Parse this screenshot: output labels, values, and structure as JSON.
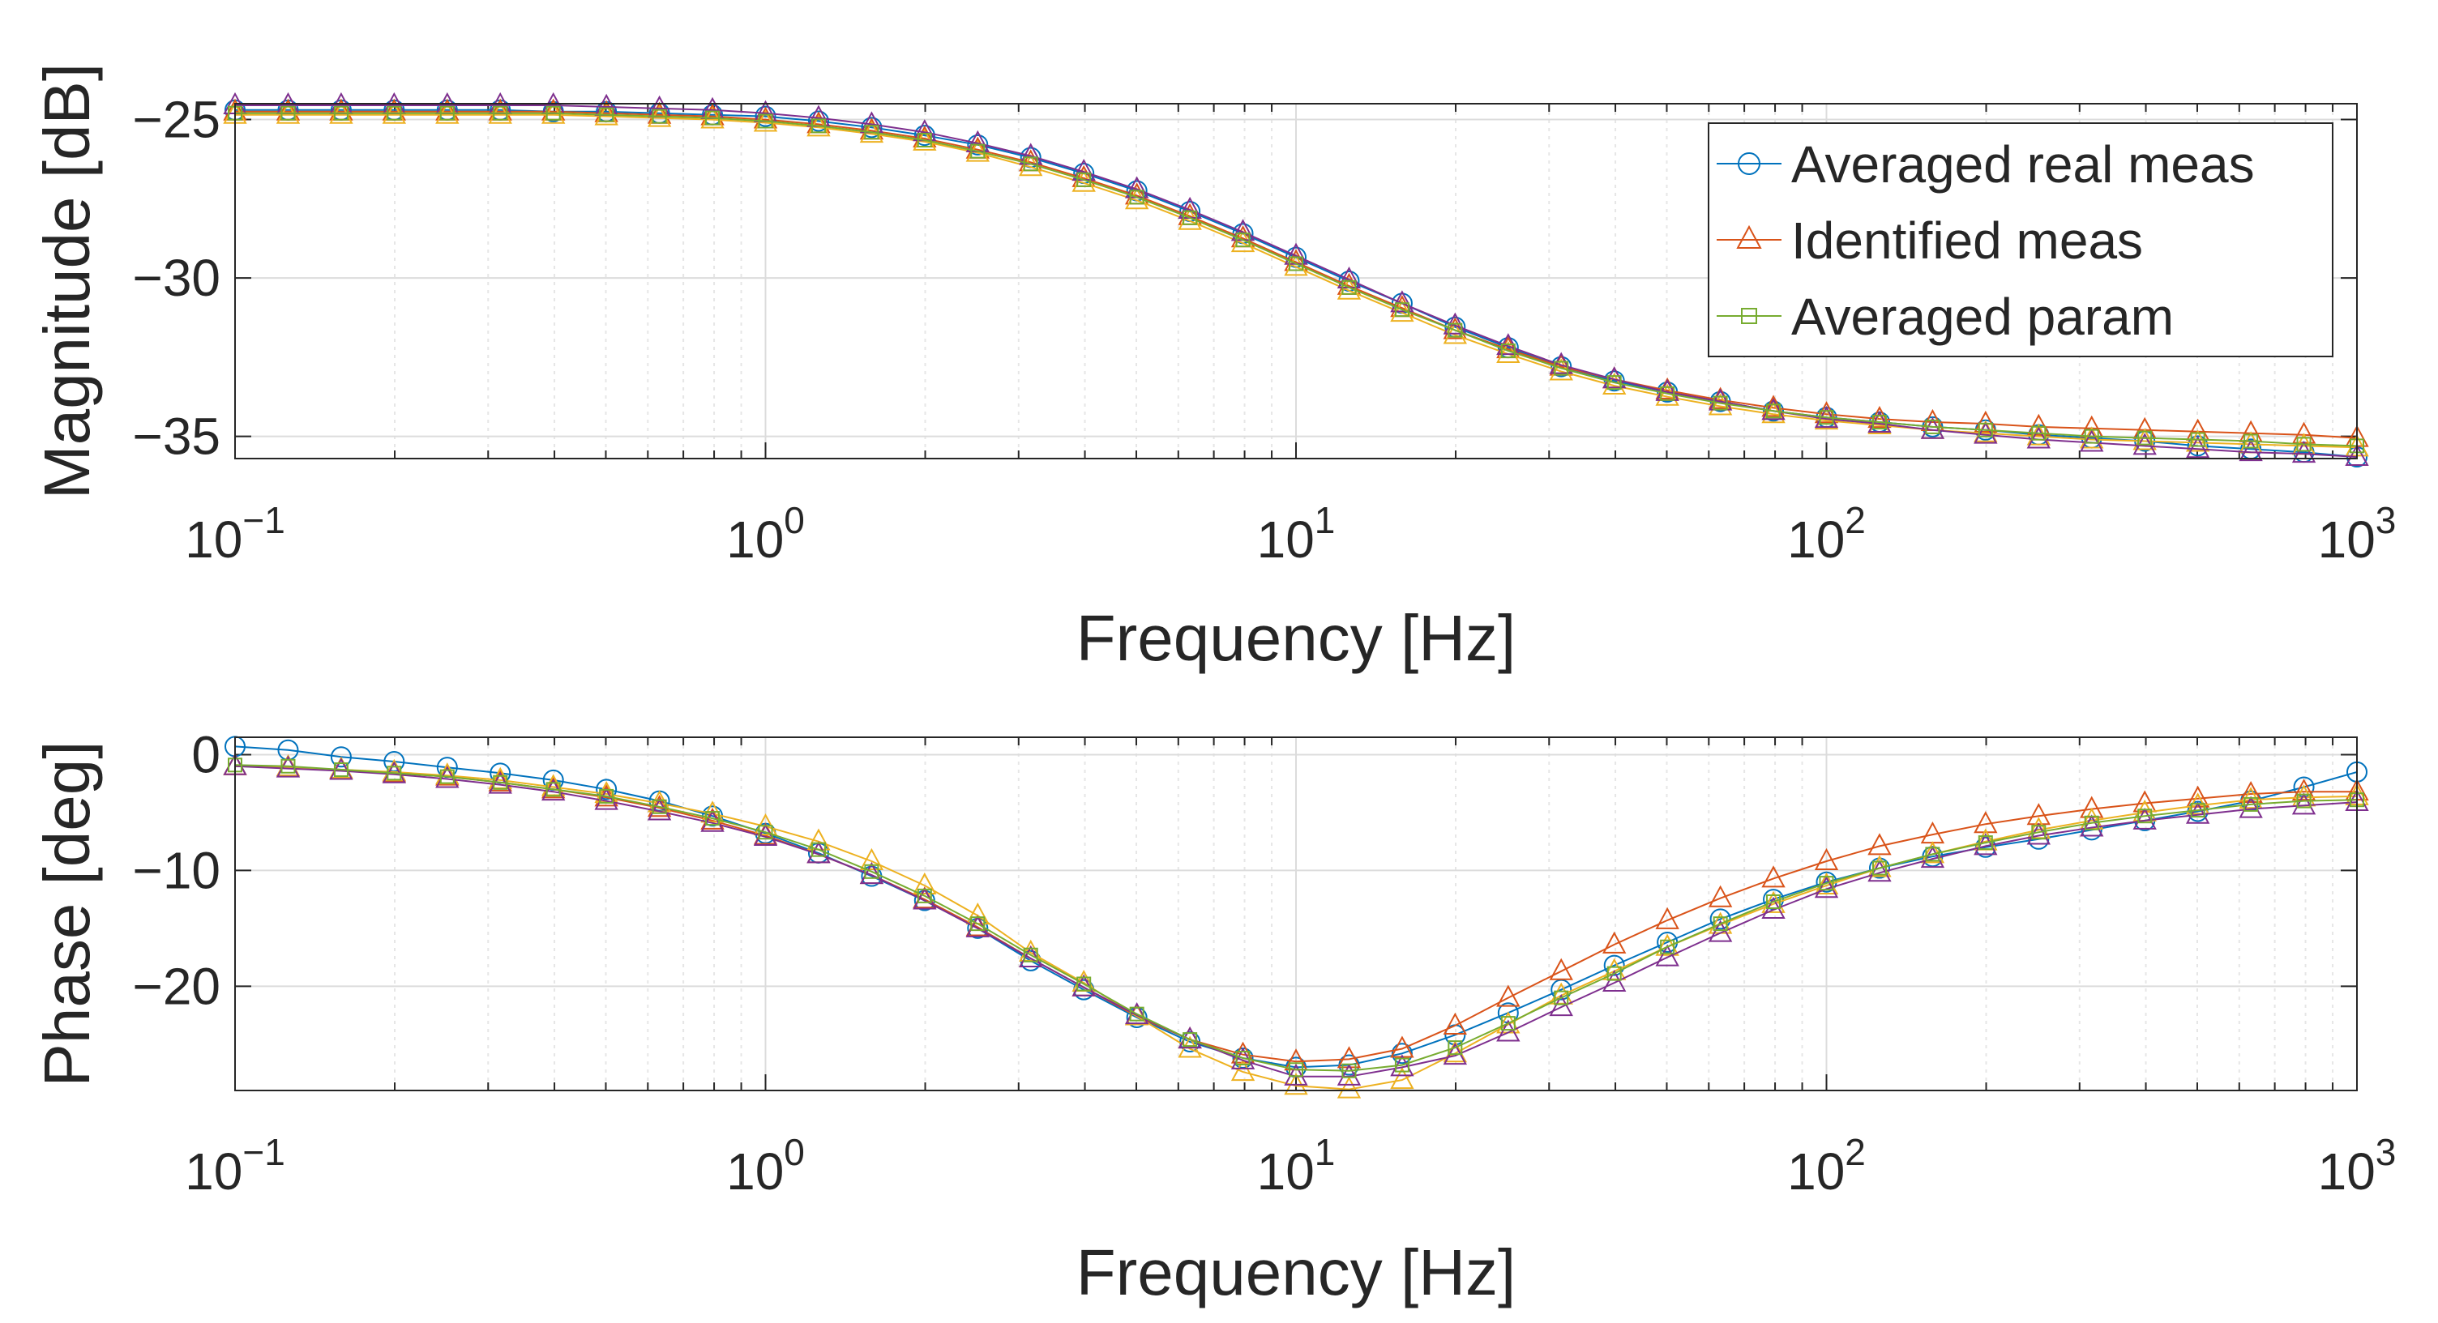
{
  "colors": {
    "blue": "#0072BD",
    "orange": "#D95319",
    "yellow": "#EDB120",
    "purple": "#7E2F8E",
    "green": "#77AC30",
    "axis": "#262626"
  },
  "chart_data": [
    {
      "type": "line",
      "xscale": "log",
      "xlim": [
        0.1,
        1000
      ],
      "ylim": [
        -35.7,
        -24.5
      ],
      "xlabel": "Frequency [Hz]",
      "ylabel": "Magnitude [dB]",
      "x_ticks": [
        0.1,
        1,
        10,
        100,
        1000
      ],
      "x_tick_labels": [
        {
          "base": "10",
          "exp": "−1"
        },
        {
          "base": "10",
          "exp": "0"
        },
        {
          "base": "10",
          "exp": "1"
        },
        {
          "base": "10",
          "exp": "2"
        },
        {
          "base": "10",
          "exp": "3"
        }
      ],
      "y_ticks": [
        -35,
        -30,
        -25
      ],
      "y_tick_labels": [
        "−35",
        "−30",
        "−25"
      ],
      "grid": true,
      "legend": {
        "position": "top-right",
        "entries": [
          {
            "label": "Averaged real meas",
            "series": 0
          },
          {
            "label": "Identified meas",
            "series": 1
          },
          {
            "label": "Averaged param",
            "series": 4
          }
        ]
      },
      "x": [
        0.1,
        0.1259,
        0.1585,
        0.1995,
        0.2512,
        0.3162,
        0.3981,
        0.5012,
        0.631,
        0.7943,
        1.0,
        1.259,
        1.585,
        1.995,
        2.512,
        3.162,
        3.981,
        5.012,
        6.31,
        7.943,
        10.0,
        12.59,
        15.85,
        19.95,
        25.12,
        31.62,
        39.81,
        50.12,
        63.1,
        79.43,
        100.0,
        125.9,
        158.5,
        199.5,
        251.2,
        316.2,
        398.1,
        501.2,
        631.0,
        794.3,
        1000.0
      ],
      "series": [
        {
          "name": "Averaged real meas",
          "color": "blue",
          "marker": "circle",
          "values": [
            -24.7,
            -24.7,
            -24.7,
            -24.7,
            -24.7,
            -24.7,
            -24.75,
            -24.75,
            -24.8,
            -24.85,
            -24.9,
            -25.05,
            -25.25,
            -25.5,
            -25.8,
            -26.2,
            -26.7,
            -27.25,
            -27.9,
            -28.6,
            -29.35,
            -30.1,
            -30.8,
            -31.55,
            -32.2,
            -32.8,
            -33.25,
            -33.6,
            -33.9,
            -34.2,
            -34.4,
            -34.55,
            -34.7,
            -34.8,
            -34.95,
            -35.05,
            -35.15,
            -35.3,
            -35.4,
            -35.5,
            -35.65
          ]
        },
        {
          "name": "Identified meas",
          "color": "orange",
          "marker": "triangle",
          "values": [
            -24.75,
            -24.75,
            -24.75,
            -24.75,
            -24.75,
            -24.75,
            -24.75,
            -24.8,
            -24.85,
            -24.9,
            -25.0,
            -25.15,
            -25.35,
            -25.6,
            -25.95,
            -26.35,
            -26.85,
            -27.4,
            -28.05,
            -28.75,
            -29.5,
            -30.25,
            -30.95,
            -31.65,
            -32.25,
            -32.8,
            -33.2,
            -33.55,
            -33.85,
            -34.1,
            -34.3,
            -34.45,
            -34.55,
            -34.6,
            -34.7,
            -34.75,
            -34.8,
            -34.85,
            -34.9,
            -34.95,
            -35.05
          ]
        },
        {
          "name": "",
          "color": "yellow",
          "marker": "triangle",
          "values": [
            -24.85,
            -24.85,
            -24.85,
            -24.85,
            -24.85,
            -24.85,
            -24.85,
            -24.9,
            -24.95,
            -25.0,
            -25.1,
            -25.25,
            -25.45,
            -25.7,
            -26.05,
            -26.5,
            -27.0,
            -27.55,
            -28.2,
            -28.9,
            -29.65,
            -30.4,
            -31.1,
            -31.8,
            -32.4,
            -32.95,
            -33.4,
            -33.75,
            -34.05,
            -34.3,
            -34.5,
            -34.65,
            -34.8,
            -34.9,
            -35.0,
            -35.1,
            -35.15,
            -35.2,
            -35.25,
            -35.3,
            -35.35
          ]
        },
        {
          "name": "",
          "color": "purple",
          "marker": "triangle",
          "values": [
            -24.55,
            -24.55,
            -24.55,
            -24.55,
            -24.55,
            -24.55,
            -24.55,
            -24.6,
            -24.65,
            -24.7,
            -24.8,
            -24.95,
            -25.15,
            -25.4,
            -25.75,
            -26.15,
            -26.65,
            -27.2,
            -27.85,
            -28.55,
            -29.3,
            -30.05,
            -30.8,
            -31.5,
            -32.15,
            -32.75,
            -33.2,
            -33.6,
            -33.9,
            -34.2,
            -34.45,
            -34.6,
            -34.8,
            -34.95,
            -35.1,
            -35.2,
            -35.3,
            -35.4,
            -35.5,
            -35.55,
            -35.65
          ]
        },
        {
          "name": "Averaged param",
          "color": "green",
          "marker": "square",
          "values": [
            -24.8,
            -24.8,
            -24.8,
            -24.8,
            -24.8,
            -24.8,
            -24.8,
            -24.85,
            -24.9,
            -24.95,
            -25.05,
            -25.2,
            -25.4,
            -25.65,
            -26.0,
            -26.4,
            -26.9,
            -27.45,
            -28.1,
            -28.8,
            -29.55,
            -30.3,
            -31.0,
            -31.65,
            -32.3,
            -32.85,
            -33.3,
            -33.65,
            -33.95,
            -34.2,
            -34.4,
            -34.55,
            -34.7,
            -34.8,
            -34.9,
            -35.0,
            -35.05,
            -35.1,
            -35.15,
            -35.25,
            -35.3
          ]
        }
      ]
    },
    {
      "type": "line",
      "xscale": "log",
      "xlim": [
        0.1,
        1000
      ],
      "ylim": [
        -29,
        1.5
      ],
      "xlabel": "Frequency [Hz]",
      "ylabel": "Phase [deg]",
      "x_ticks": [
        0.1,
        1,
        10,
        100,
        1000
      ],
      "x_tick_labels": [
        {
          "base": "10",
          "exp": "−1"
        },
        {
          "base": "10",
          "exp": "0"
        },
        {
          "base": "10",
          "exp": "1"
        },
        {
          "base": "10",
          "exp": "2"
        },
        {
          "base": "10",
          "exp": "3"
        }
      ],
      "y_ticks": [
        -20,
        -10,
        0
      ],
      "y_tick_labels": [
        "−20",
        "−10",
        "0"
      ],
      "grid": true,
      "x": [
        0.1,
        0.1259,
        0.1585,
        0.1995,
        0.2512,
        0.3162,
        0.3981,
        0.5012,
        0.631,
        0.7943,
        1.0,
        1.259,
        1.585,
        1.995,
        2.512,
        3.162,
        3.981,
        5.012,
        6.31,
        7.943,
        10.0,
        12.59,
        15.85,
        19.95,
        25.12,
        31.62,
        39.81,
        50.12,
        63.1,
        79.43,
        100.0,
        125.9,
        158.5,
        199.5,
        251.2,
        316.2,
        398.1,
        501.2,
        631.0,
        794.3,
        1000.0
      ],
      "series": [
        {
          "name": "Averaged real meas",
          "color": "blue",
          "marker": "circle",
          "values": [
            0.7,
            0.4,
            -0.2,
            -0.6,
            -1.1,
            -1.6,
            -2.2,
            -3.0,
            -4.0,
            -5.3,
            -6.8,
            -8.5,
            -10.5,
            -12.6,
            -15.0,
            -17.8,
            -20.3,
            -22.7,
            -24.8,
            -26.2,
            -27.0,
            -26.8,
            -25.8,
            -24.2,
            -22.3,
            -20.3,
            -18.2,
            -16.2,
            -14.2,
            -12.5,
            -11.0,
            -9.8,
            -8.8,
            -8.0,
            -7.3,
            -6.5,
            -5.7,
            -4.9,
            -4.0,
            -2.8,
            -1.5
          ]
        },
        {
          "name": "Identified meas",
          "color": "orange",
          "marker": "triangle",
          "values": [
            -1.0,
            -1.1,
            -1.3,
            -1.6,
            -1.9,
            -2.4,
            -3.0,
            -3.7,
            -4.6,
            -5.7,
            -7.0,
            -8.6,
            -10.4,
            -12.5,
            -14.9,
            -17.6,
            -20.1,
            -22.6,
            -24.6,
            -25.9,
            -26.5,
            -26.3,
            -25.4,
            -23.4,
            -21.0,
            -18.7,
            -16.4,
            -14.3,
            -12.4,
            -10.7,
            -9.2,
            -7.9,
            -6.9,
            -6.0,
            -5.3,
            -4.7,
            -4.2,
            -3.8,
            -3.4,
            -3.2,
            -3.2
          ]
        },
        {
          "name": "",
          "color": "yellow",
          "marker": "triangle",
          "values": [
            -1.0,
            -1.1,
            -1.3,
            -1.5,
            -1.8,
            -2.2,
            -2.8,
            -3.4,
            -4.2,
            -5.1,
            -6.2,
            -7.5,
            -9.2,
            -11.3,
            -13.9,
            -17.1,
            -19.7,
            -22.6,
            -25.4,
            -27.4,
            -28.6,
            -28.9,
            -28.1,
            -25.8,
            -23.3,
            -20.8,
            -18.7,
            -16.6,
            -14.7,
            -12.9,
            -11.3,
            -9.8,
            -8.6,
            -7.5,
            -6.5,
            -5.7,
            -5.0,
            -4.4,
            -3.9,
            -3.7,
            -3.6
          ]
        },
        {
          "name": "",
          "color": "purple",
          "marker": "triangle",
          "values": [
            -1.0,
            -1.2,
            -1.4,
            -1.7,
            -2.1,
            -2.6,
            -3.2,
            -4.0,
            -4.9,
            -5.9,
            -7.1,
            -8.6,
            -10.4,
            -12.6,
            -15.0,
            -17.6,
            -20.1,
            -22.5,
            -24.6,
            -26.4,
            -27.8,
            -27.8,
            -27.0,
            -26.0,
            -24.0,
            -21.8,
            -19.7,
            -17.5,
            -15.4,
            -13.4,
            -11.6,
            -10.2,
            -9.0,
            -7.9,
            -7.0,
            -6.3,
            -5.7,
            -5.2,
            -4.7,
            -4.4,
            -4.1
          ]
        },
        {
          "name": "Averaged param",
          "color": "green",
          "marker": "square",
          "values": [
            -0.9,
            -1.0,
            -1.3,
            -1.6,
            -1.9,
            -2.4,
            -3.0,
            -3.6,
            -4.5,
            -5.5,
            -6.7,
            -8.2,
            -10.1,
            -12.2,
            -14.6,
            -17.3,
            -19.8,
            -22.4,
            -24.6,
            -26.2,
            -27.2,
            -27.3,
            -26.8,
            -25.3,
            -23.2,
            -21.0,
            -18.9,
            -16.6,
            -14.6,
            -12.7,
            -11.1,
            -9.8,
            -8.6,
            -7.6,
            -6.7,
            -5.9,
            -5.3,
            -4.8,
            -4.3,
            -4.0,
            -3.9
          ]
        }
      ]
    }
  ]
}
